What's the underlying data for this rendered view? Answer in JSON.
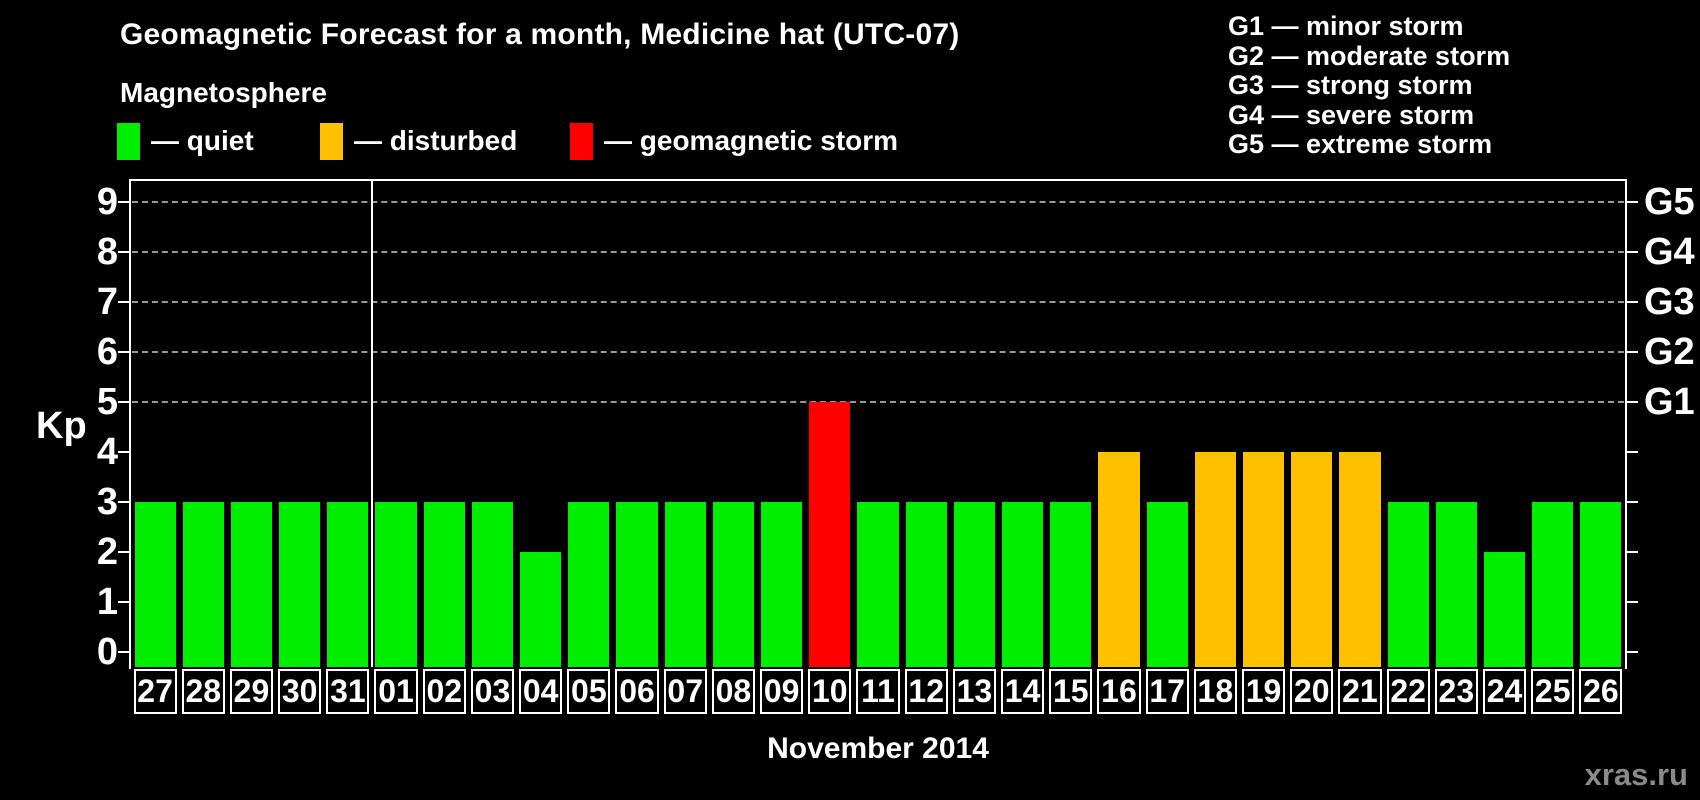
{
  "page": {
    "title": "Geomagnetic Forecast for a month, Medicine hat (UTC-07)",
    "subtitle": "Magnetosphere"
  },
  "colors": {
    "quiet": "#00EE00",
    "disturbed": "#FFC000",
    "storm": "#FF0000",
    "grid": "#999999",
    "axis": "#FFFFFF",
    "watermark": "#8A8A8A",
    "background": "#000000"
  },
  "legend": {
    "items": [
      {
        "status": "quiet",
        "label": "— quiet"
      },
      {
        "status": "disturbed",
        "label": "— disturbed"
      },
      {
        "status": "storm",
        "label": "— geomagnetic storm"
      }
    ]
  },
  "g_legend": {
    "lines": [
      "G1 — minor storm",
      "G2 — moderate storm",
      "G3 — strong storm",
      "G4 — severe storm",
      "G5 — extreme storm"
    ]
  },
  "footer": {
    "watermark": "xras.ru"
  },
  "chart_data": {
    "type": "bar",
    "title": "Geomagnetic Forecast for a month, Medicine hat (UTC-07)",
    "xlabel": "November 2014",
    "ylabel": "Kp",
    "ylim": [
      0,
      9.4
    ],
    "yticks": [
      0,
      1,
      2,
      3,
      4,
      5,
      6,
      7,
      8,
      9
    ],
    "grid_kp": [
      5,
      6,
      7,
      8,
      9
    ],
    "right_labels": [
      {
        "kp": 5,
        "label": "G1"
      },
      {
        "kp": 6,
        "label": "G2"
      },
      {
        "kp": 7,
        "label": "G3"
      },
      {
        "kp": 8,
        "label": "G4"
      },
      {
        "kp": 9,
        "label": "G5"
      }
    ],
    "month_separator_after_index": 4,
    "categories": [
      "27",
      "28",
      "29",
      "30",
      "31",
      "01",
      "02",
      "03",
      "04",
      "05",
      "06",
      "07",
      "08",
      "09",
      "10",
      "11",
      "12",
      "13",
      "14",
      "15",
      "16",
      "17",
      "18",
      "19",
      "20",
      "21",
      "22",
      "23",
      "24",
      "25",
      "26"
    ],
    "values": [
      3,
      3,
      3,
      3,
      3,
      3,
      3,
      3,
      2,
      3,
      3,
      3,
      3,
      3,
      5,
      3,
      3,
      3,
      3,
      3,
      4,
      3,
      4,
      4,
      4,
      4,
      3,
      3,
      2,
      3,
      3
    ],
    "days": [
      {
        "day": "27",
        "kp": 3,
        "status": "quiet"
      },
      {
        "day": "28",
        "kp": 3,
        "status": "quiet"
      },
      {
        "day": "29",
        "kp": 3,
        "status": "quiet"
      },
      {
        "day": "30",
        "kp": 3,
        "status": "quiet"
      },
      {
        "day": "31",
        "kp": 3,
        "status": "quiet"
      },
      {
        "day": "01",
        "kp": 3,
        "status": "quiet"
      },
      {
        "day": "02",
        "kp": 3,
        "status": "quiet"
      },
      {
        "day": "03",
        "kp": 3,
        "status": "quiet"
      },
      {
        "day": "04",
        "kp": 2,
        "status": "quiet"
      },
      {
        "day": "05",
        "kp": 3,
        "status": "quiet"
      },
      {
        "day": "06",
        "kp": 3,
        "status": "quiet"
      },
      {
        "day": "07",
        "kp": 3,
        "status": "quiet"
      },
      {
        "day": "08",
        "kp": 3,
        "status": "quiet"
      },
      {
        "day": "09",
        "kp": 3,
        "status": "quiet"
      },
      {
        "day": "10",
        "kp": 5,
        "status": "storm"
      },
      {
        "day": "11",
        "kp": 3,
        "status": "quiet"
      },
      {
        "day": "12",
        "kp": 3,
        "status": "quiet"
      },
      {
        "day": "13",
        "kp": 3,
        "status": "quiet"
      },
      {
        "day": "14",
        "kp": 3,
        "status": "quiet"
      },
      {
        "day": "15",
        "kp": 3,
        "status": "quiet"
      },
      {
        "day": "16",
        "kp": 4,
        "status": "disturbed"
      },
      {
        "day": "17",
        "kp": 3,
        "status": "quiet"
      },
      {
        "day": "18",
        "kp": 4,
        "status": "disturbed"
      },
      {
        "day": "19",
        "kp": 4,
        "status": "disturbed"
      },
      {
        "day": "20",
        "kp": 4,
        "status": "disturbed"
      },
      {
        "day": "21",
        "kp": 4,
        "status": "disturbed"
      },
      {
        "day": "22",
        "kp": 3,
        "status": "quiet"
      },
      {
        "day": "23",
        "kp": 3,
        "status": "quiet"
      },
      {
        "day": "24",
        "kp": 2,
        "status": "quiet"
      },
      {
        "day": "25",
        "kp": 3,
        "status": "quiet"
      },
      {
        "day": "26",
        "kp": 3,
        "status": "quiet"
      }
    ]
  }
}
